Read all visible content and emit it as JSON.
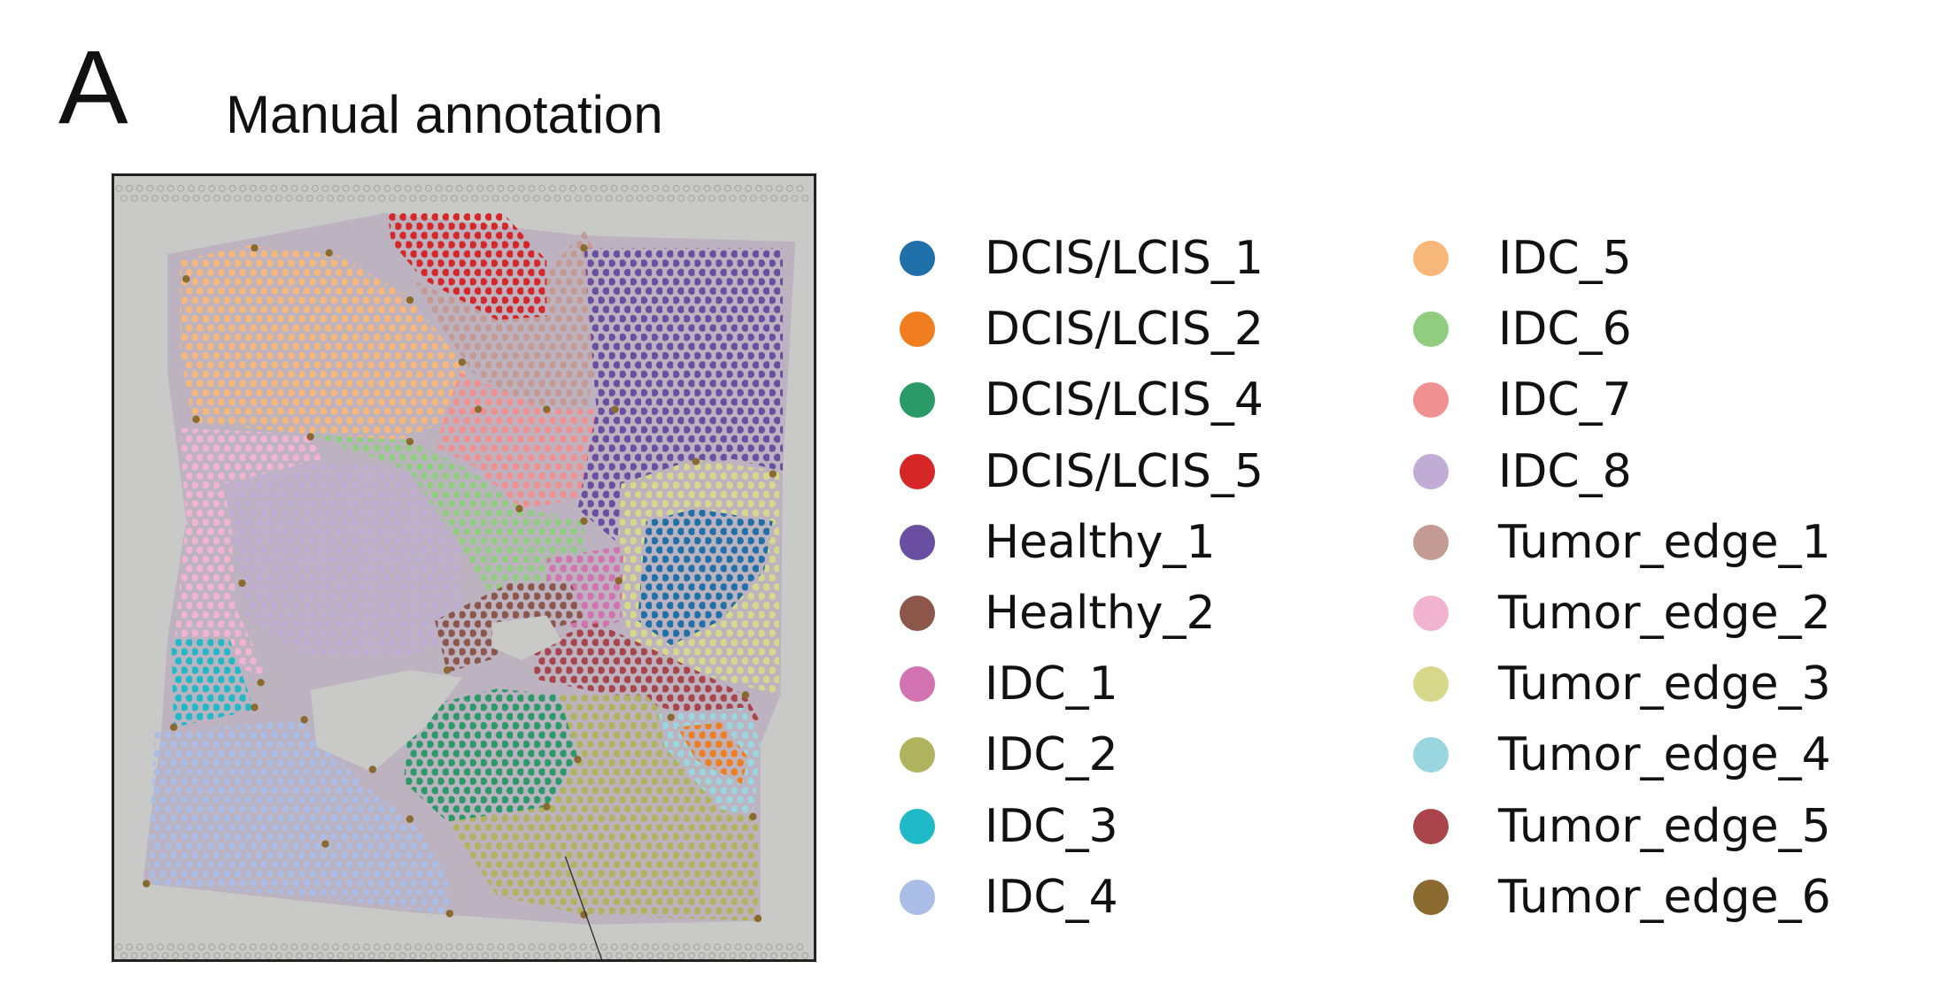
{
  "panel_letter": "A",
  "chart_data": {
    "type": "scatter",
    "title": "Manual annotation",
    "xlabel": "",
    "ylabel": "",
    "grid": false,
    "legend_placement": "right",
    "legend": [
      {
        "label": "DCIS/LCIS_1",
        "color": "#1f6faa"
      },
      {
        "label": "DCIS/LCIS_2",
        "color": "#f07d1e"
      },
      {
        "label": "DCIS/LCIS_4",
        "color": "#2a9a68"
      },
      {
        "label": "DCIS/LCIS_5",
        "color": "#d62728"
      },
      {
        "label": "Healthy_1",
        "color": "#6a4ea2"
      },
      {
        "label": "Healthy_2",
        "color": "#8c564b"
      },
      {
        "label": "IDC_1",
        "color": "#d372b0"
      },
      {
        "label": "IDC_2",
        "color": "#b0b45e"
      },
      {
        "label": "IDC_3",
        "color": "#1fb9c8"
      },
      {
        "label": "IDC_4",
        "color": "#a9bde6"
      },
      {
        "label": "IDC_5",
        "color": "#f7b779"
      },
      {
        "label": "IDC_6",
        "color": "#91cd80"
      },
      {
        "label": "IDC_7",
        "color": "#f09090"
      },
      {
        "label": "IDC_8",
        "color": "#c1acd6"
      },
      {
        "label": "Tumor_edge_1",
        "color": "#c49b94"
      },
      {
        "label": "Tumor_edge_2",
        "color": "#f1b3cf"
      },
      {
        "label": "Tumor_edge_3",
        "color": "#d6d98a"
      },
      {
        "label": "Tumor_edge_4",
        "color": "#9ad6e0"
      },
      {
        "label": "Tumor_edge_5",
        "color": "#a8444a"
      },
      {
        "label": "Tumor_edge_6",
        "color": "#8a6a2e"
      }
    ]
  }
}
